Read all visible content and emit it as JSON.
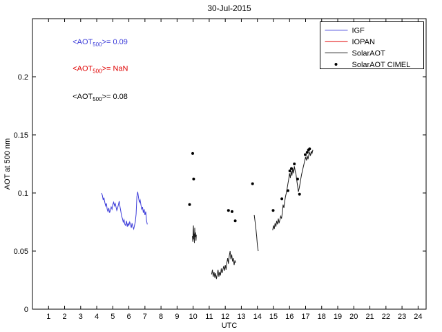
{
  "chart_data": {
    "type": "line+scatter",
    "title": "30-Jul-2015",
    "xlabel": "UTC",
    "ylabel": "AOT at 500 nm",
    "xlim": [
      0,
      24.5
    ],
    "ylim": [
      0,
      0.25
    ],
    "xticks": [
      1,
      2,
      3,
      4,
      5,
      6,
      7,
      8,
      9,
      10,
      11,
      12,
      13,
      14,
      15,
      16,
      17,
      18,
      19,
      20,
      21,
      22,
      23,
      24
    ],
    "yticks": [
      0,
      0.05,
      0.1,
      0.15,
      0.2
    ],
    "ytick_labels": [
      "0",
      "0.05",
      "0.1",
      "0.15",
      "0.2"
    ],
    "grid": false,
    "legend_position": "top-right",
    "annotations": [
      {
        "pre": "<AOT",
        "sub": "500",
        "post": ">= 0.09",
        "color": "#3b3bd9",
        "x": 2.5,
        "y": 0.228
      },
      {
        "pre": "<AOT",
        "sub": "500",
        "post": ">=  NaN",
        "color": "#e00000",
        "x": 2.5,
        "y": 0.205
      },
      {
        "pre": "<AOT",
        "sub": "500",
        "post": ">= 0.08",
        "color": "#000000",
        "x": 2.5,
        "y": 0.181
      }
    ],
    "series": [
      {
        "name": "IGF",
        "type": "line",
        "color": "#3b3bd9",
        "segments": [
          [
            [
              4.3,
              0.1
            ],
            [
              4.35,
              0.098
            ],
            [
              4.4,
              0.094
            ],
            [
              4.45,
              0.096
            ],
            [
              4.5,
              0.092
            ],
            [
              4.55,
              0.089
            ],
            [
              4.6,
              0.091
            ],
            [
              4.65,
              0.086
            ],
            [
              4.7,
              0.084
            ],
            [
              4.75,
              0.087
            ],
            [
              4.8,
              0.083
            ],
            [
              4.85,
              0.085
            ],
            [
              4.9,
              0.088
            ],
            [
              4.95,
              0.086
            ],
            [
              5.0,
              0.09
            ],
            [
              5.05,
              0.092
            ],
            [
              5.1,
              0.089
            ],
            [
              5.15,
              0.091
            ],
            [
              5.2,
              0.088
            ],
            [
              5.25,
              0.085
            ],
            [
              5.3,
              0.087
            ],
            [
              5.35,
              0.09
            ],
            [
              5.4,
              0.093
            ],
            [
              5.45,
              0.088
            ],
            [
              5.5,
              0.084
            ],
            [
              5.55,
              0.08
            ],
            [
              5.6,
              0.078
            ],
            [
              5.65,
              0.075
            ],
            [
              5.7,
              0.077
            ],
            [
              5.75,
              0.073
            ],
            [
              5.8,
              0.072
            ],
            [
              5.85,
              0.076
            ],
            [
              5.9,
              0.071
            ],
            [
              5.95,
              0.074
            ],
            [
              6.0,
              0.072
            ],
            [
              6.05,
              0.075
            ],
            [
              6.1,
              0.073
            ],
            [
              6.15,
              0.07
            ],
            [
              6.2,
              0.074
            ],
            [
              6.25,
              0.071
            ],
            [
              6.3,
              0.069
            ],
            [
              6.35,
              0.072
            ],
            [
              6.4,
              0.075
            ],
            [
              6.45,
              0.082
            ],
            [
              6.5,
              0.097
            ],
            [
              6.55,
              0.101
            ],
            [
              6.6,
              0.096
            ],
            [
              6.65,
              0.092
            ],
            [
              6.7,
              0.094
            ],
            [
              6.75,
              0.09
            ],
            [
              6.8,
              0.086
            ],
            [
              6.85,
              0.088
            ],
            [
              6.9,
              0.083
            ],
            [
              6.95,
              0.086
            ],
            [
              7.0,
              0.081
            ],
            [
              7.05,
              0.084
            ],
            [
              7.1,
              0.076
            ],
            [
              7.15,
              0.073
            ]
          ]
        ]
      },
      {
        "name": "IOPAN",
        "type": "line",
        "color": "#e00000",
        "segments": []
      },
      {
        "name": "SolarAOT",
        "type": "line",
        "color": "#1a1a1a",
        "segments": [
          [
            [
              9.95,
              0.063
            ],
            [
              9.98,
              0.058
            ],
            [
              10.0,
              0.068
            ],
            [
              10.02,
              0.072
            ],
            [
              10.04,
              0.06
            ],
            [
              10.06,
              0.065
            ],
            [
              10.08,
              0.057
            ],
            [
              10.1,
              0.07
            ],
            [
              10.12,
              0.062
            ],
            [
              10.15,
              0.066
            ],
            [
              10.18,
              0.059
            ],
            [
              10.2,
              0.064
            ]
          ],
          [
            [
              11.15,
              0.03
            ],
            [
              11.2,
              0.034
            ],
            [
              11.25,
              0.028
            ],
            [
              11.3,
              0.032
            ],
            [
              11.35,
              0.027
            ],
            [
              11.4,
              0.031
            ],
            [
              11.45,
              0.026
            ],
            [
              11.5,
              0.03
            ],
            [
              11.55,
              0.034
            ],
            [
              11.6,
              0.028
            ],
            [
              11.65,
              0.032
            ],
            [
              11.7,
              0.029
            ],
            [
              11.75,
              0.035
            ],
            [
              11.8,
              0.031
            ],
            [
              11.85,
              0.034
            ],
            [
              11.9,
              0.037
            ],
            [
              11.95,
              0.033
            ],
            [
              12.0,
              0.038
            ],
            [
              12.05,
              0.034
            ],
            [
              12.1,
              0.04
            ],
            [
              12.15,
              0.044
            ],
            [
              12.2,
              0.039
            ],
            [
              12.25,
              0.046
            ],
            [
              12.3,
              0.05
            ],
            [
              12.35,
              0.043
            ],
            [
              12.4,
              0.047
            ],
            [
              12.45,
              0.041
            ],
            [
              12.5,
              0.044
            ],
            [
              12.55,
              0.038
            ],
            [
              12.6,
              0.042
            ],
            [
              12.65,
              0.04
            ]
          ],
          [
            [
              13.8,
              0.081
            ],
            [
              13.85,
              0.076
            ],
            [
              13.9,
              0.07
            ],
            [
              13.95,
              0.063
            ],
            [
              14.0,
              0.055
            ],
            [
              14.05,
              0.05
            ]
          ],
          [
            [
              14.95,
              0.068
            ],
            [
              15.0,
              0.072
            ],
            [
              15.05,
              0.069
            ],
            [
              15.1,
              0.074
            ],
            [
              15.15,
              0.071
            ],
            [
              15.2,
              0.076
            ],
            [
              15.25,
              0.073
            ],
            [
              15.3,
              0.078
            ],
            [
              15.35,
              0.074
            ],
            [
              15.4,
              0.077
            ],
            [
              15.45,
              0.08
            ],
            [
              15.5,
              0.078
            ],
            [
              15.55,
              0.083
            ],
            [
              15.6,
              0.09
            ],
            [
              15.65,
              0.087
            ],
            [
              15.7,
              0.093
            ],
            [
              15.75,
              0.097
            ],
            [
              15.8,
              0.1
            ],
            [
              15.85,
              0.104
            ],
            [
              15.9,
              0.108
            ],
            [
              15.95,
              0.112
            ],
            [
              16.0,
              0.117
            ],
            [
              16.05,
              0.113
            ],
            [
              16.1,
              0.119
            ],
            [
              16.15,
              0.115
            ],
            [
              16.2,
              0.121
            ],
            [
              16.25,
              0.117
            ],
            [
              16.3,
              0.123
            ],
            [
              16.35,
              0.119
            ],
            [
              16.4,
              0.116
            ],
            [
              16.45,
              0.111
            ],
            [
              16.5,
              0.106
            ],
            [
              16.55,
              0.101
            ],
            [
              16.6,
              0.104
            ],
            [
              16.65,
              0.108
            ],
            [
              16.7,
              0.112
            ],
            [
              16.75,
              0.116
            ],
            [
              16.8,
              0.119
            ],
            [
              16.85,
              0.122
            ],
            [
              16.9,
              0.125
            ],
            [
              16.95,
              0.128
            ],
            [
              17.0,
              0.131
            ],
            [
              17.05,
              0.128
            ],
            [
              17.1,
              0.132
            ],
            [
              17.15,
              0.129
            ],
            [
              17.2,
              0.133
            ],
            [
              17.25,
              0.135
            ],
            [
              17.3,
              0.132
            ],
            [
              17.35,
              0.136
            ],
            [
              17.4,
              0.134
            ],
            [
              17.45,
              0.137
            ]
          ]
        ]
      },
      {
        "name": "SolarAOT CIMEL",
        "type": "scatter",
        "color": "#000000",
        "points": [
          [
            9.78,
            0.09
          ],
          [
            9.97,
            0.134
          ],
          [
            10.03,
            0.112
          ],
          [
            12.2,
            0.085
          ],
          [
            12.42,
            0.084
          ],
          [
            12.62,
            0.076
          ],
          [
            13.7,
            0.108
          ],
          [
            14.98,
            0.085
          ],
          [
            15.52,
            0.095
          ],
          [
            15.9,
            0.102
          ],
          [
            16.02,
            0.119
          ],
          [
            16.12,
            0.121
          ],
          [
            16.3,
            0.125
          ],
          [
            16.5,
            0.112
          ],
          [
            16.62,
            0.099
          ],
          [
            16.98,
            0.133
          ],
          [
            17.1,
            0.135
          ],
          [
            17.18,
            0.137
          ],
          [
            17.25,
            0.138
          ]
        ]
      }
    ],
    "mean_aot_500": {
      "IGF": "0.09",
      "IOPAN": "NaN",
      "SolarAOT": "0.08"
    }
  }
}
